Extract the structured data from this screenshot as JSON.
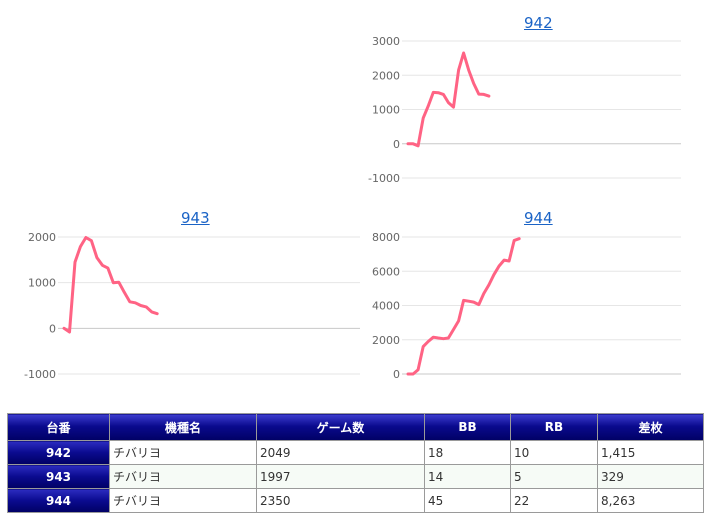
{
  "chart_data": [
    {
      "type": "line",
      "title": "942",
      "ylim": [
        -1000,
        3000
      ],
      "yticks": [
        -1000,
        0,
        1000,
        2000,
        3000
      ],
      "xlim": [
        0,
        54
      ],
      "color": "#ff6384",
      "series": [
        {
          "values": [
            [
              0,
              0
            ],
            [
              1,
              0
            ],
            [
              2,
              -60
            ],
            [
              3,
              750
            ],
            [
              4,
              1100
            ],
            [
              5,
              1500
            ],
            [
              6,
              1490
            ],
            [
              7,
              1440
            ],
            [
              8,
              1200
            ],
            [
              9,
              1070
            ],
            [
              10,
              2150
            ],
            [
              11,
              2650
            ],
            [
              12,
              2150
            ],
            [
              13,
              1760
            ],
            [
              14,
              1450
            ],
            [
              15,
              1440
            ],
            [
              16,
              1390
            ]
          ]
        }
      ]
    },
    {
      "type": "line",
      "title": "943",
      "ylim": [
        -1000,
        2000
      ],
      "yticks": [
        -1000,
        0,
        1000,
        2000
      ],
      "xlim": [
        0,
        54
      ],
      "color": "#ff6384",
      "series": [
        {
          "values": [
            [
              0,
              0
            ],
            [
              1,
              -80
            ],
            [
              2,
              1450
            ],
            [
              3,
              1790
            ],
            [
              4,
              1990
            ],
            [
              5,
              1920
            ],
            [
              6,
              1550
            ],
            [
              7,
              1380
            ],
            [
              8,
              1320
            ],
            [
              9,
              1000
            ],
            [
              10,
              1010
            ],
            [
              11,
              790
            ],
            [
              12,
              580
            ],
            [
              13,
              560
            ],
            [
              14,
              500
            ],
            [
              15,
              470
            ],
            [
              16,
              360
            ],
            [
              17,
              320
            ]
          ]
        }
      ]
    },
    {
      "type": "line",
      "title": "944",
      "ylim": [
        0,
        8000
      ],
      "yticks": [
        0,
        2000,
        4000,
        6000,
        8000
      ],
      "xlim": [
        0,
        54
      ],
      "color": "#ff6384",
      "series": [
        {
          "values": [
            [
              0,
              0
            ],
            [
              1,
              0
            ],
            [
              2,
              250
            ],
            [
              3,
              1600
            ],
            [
              4,
              1900
            ],
            [
              5,
              2150
            ],
            [
              6,
              2100
            ],
            [
              7,
              2060
            ],
            [
              8,
              2100
            ],
            [
              9,
              2600
            ],
            [
              10,
              3100
            ],
            [
              11,
              4300
            ],
            [
              12,
              4250
            ],
            [
              13,
              4200
            ],
            [
              14,
              4050
            ],
            [
              15,
              4700
            ],
            [
              16,
              5200
            ],
            [
              17,
              5800
            ],
            [
              18,
              6300
            ],
            [
              19,
              6650
            ],
            [
              20,
              6600
            ],
            [
              21,
              7800
            ],
            [
              22,
              7900
            ]
          ]
        }
      ]
    }
  ],
  "table": {
    "headers": [
      "台番",
      "機種名",
      "ゲーム数",
      "BB",
      "RB",
      "差枚"
    ],
    "rows": [
      [
        "942",
        "チバリヨ",
        "2049",
        "18",
        "10",
        "1,415"
      ],
      [
        "943",
        "チバリヨ",
        "1997",
        "14",
        "5",
        "329"
      ],
      [
        "944",
        "チバリヨ",
        "2350",
        "45",
        "22",
        "8,263"
      ]
    ]
  }
}
